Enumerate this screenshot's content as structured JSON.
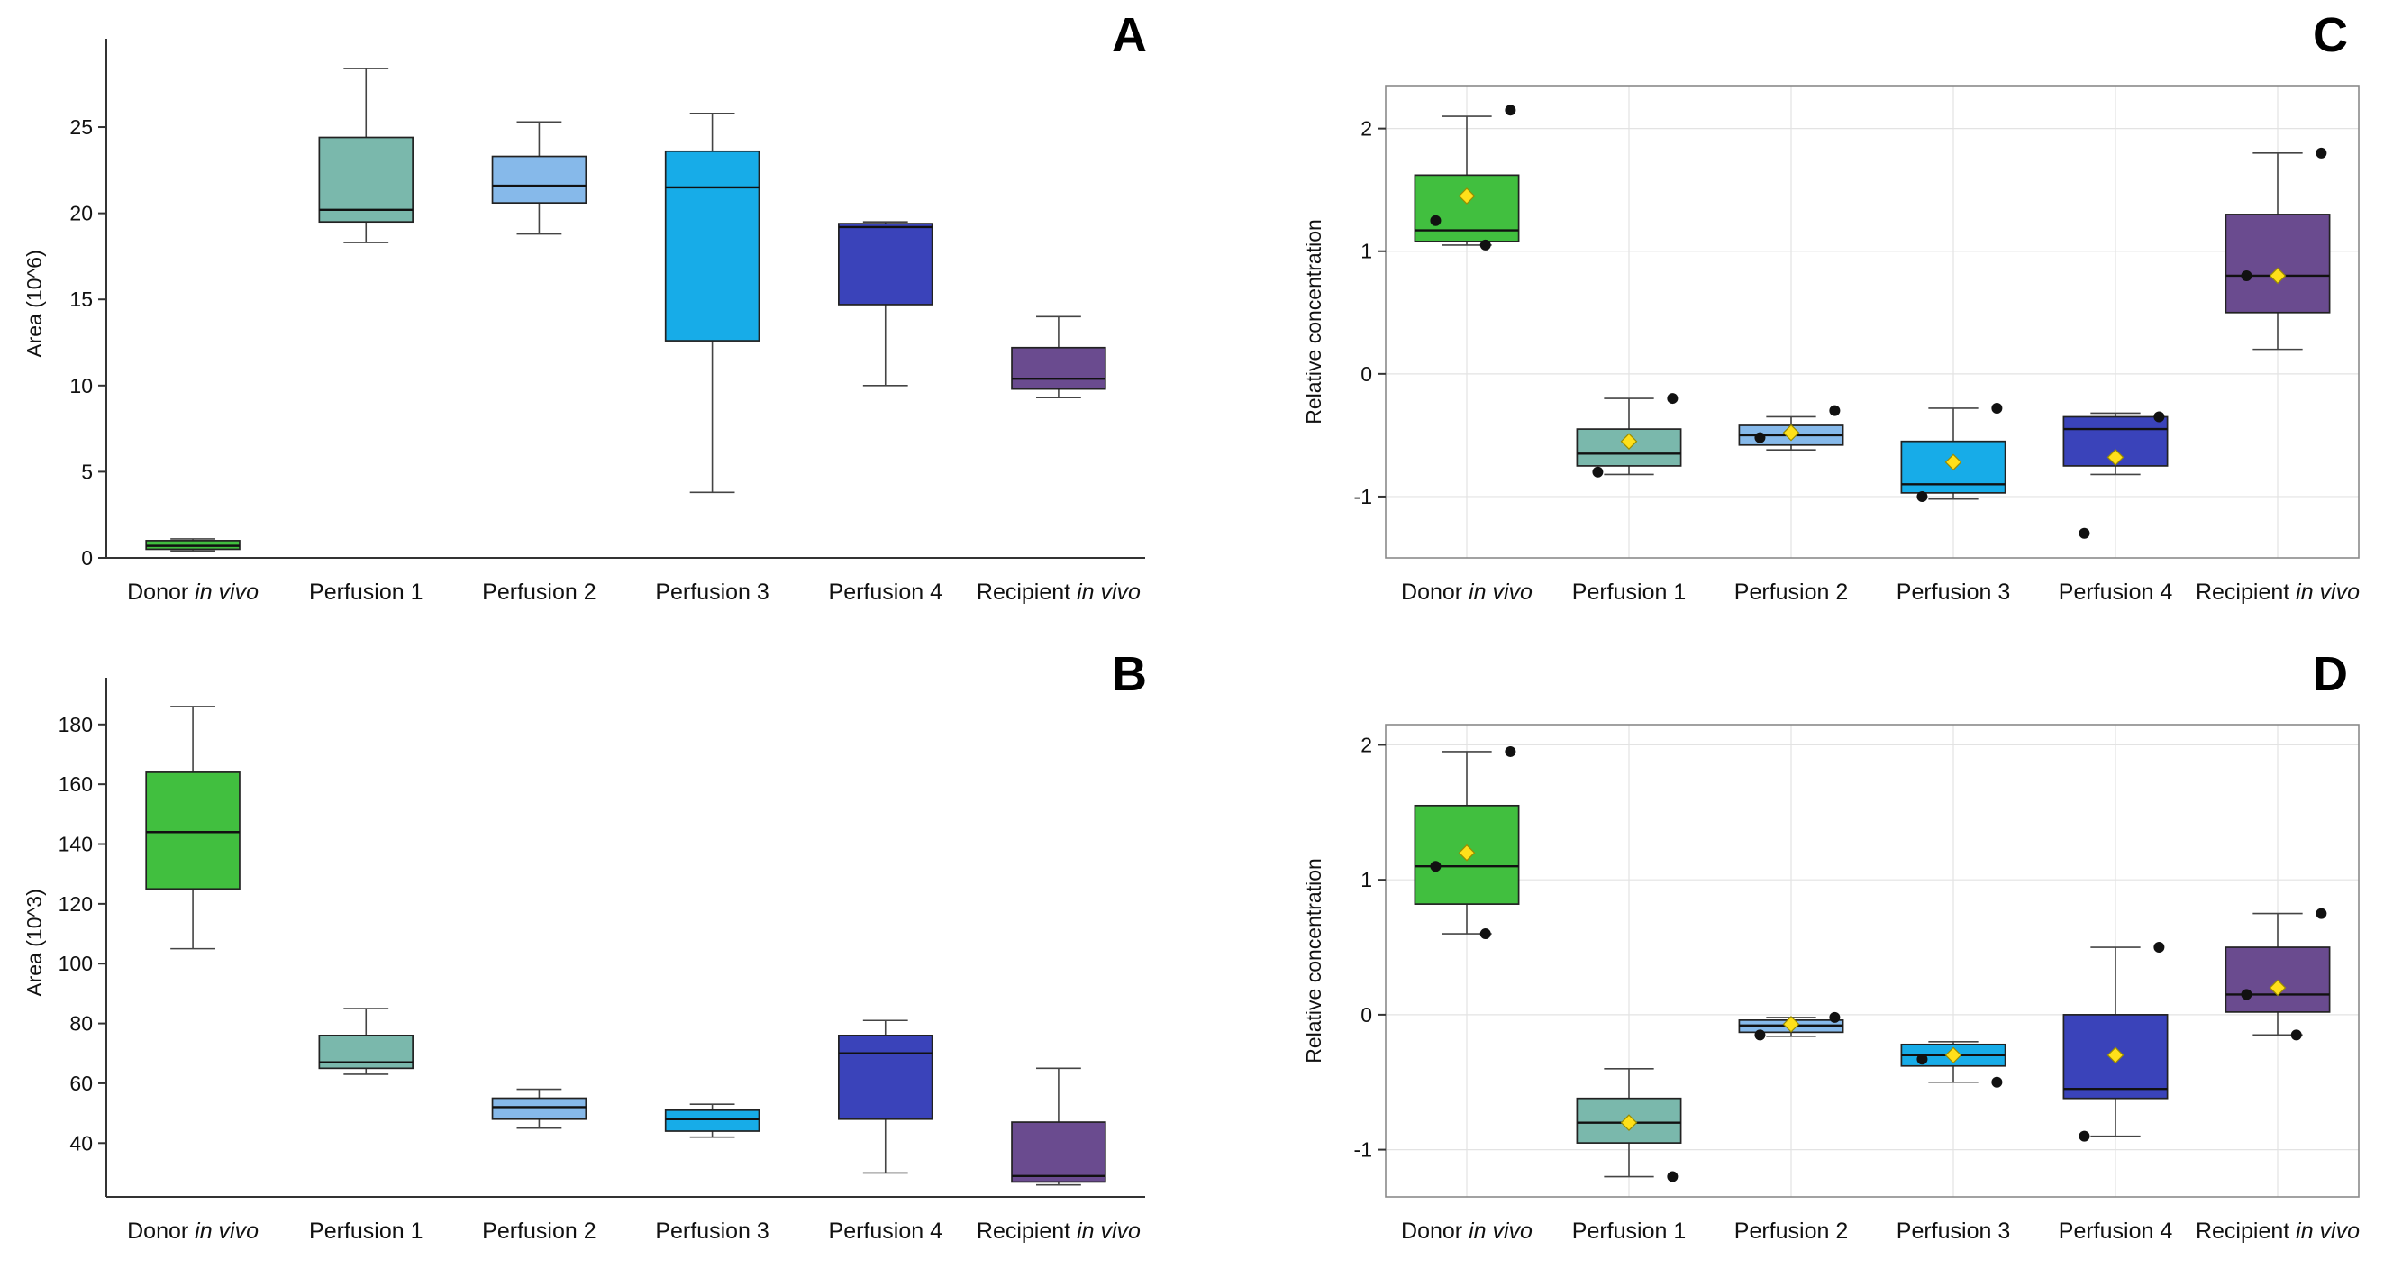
{
  "chart_data": [
    {
      "panel_label": "A",
      "type": "box",
      "title": "",
      "xlabel": "",
      "ylabel": "Area (10^6)",
      "ylim": [
        0,
        29.5
      ],
      "yticks": [
        0,
        5,
        10,
        15,
        20,
        25
      ],
      "grid": false,
      "frame": false,
      "legend": "none",
      "categories": [
        {
          "pre": "Donor ",
          "italic": "in vivo"
        },
        {
          "pre": "Perfusion 1",
          "italic": ""
        },
        {
          "pre": "Perfusion 2",
          "italic": ""
        },
        {
          "pre": "Perfusion 3",
          "italic": ""
        },
        {
          "pre": "Perfusion 4",
          "italic": ""
        },
        {
          "pre": "Recipient ",
          "italic": "in vivo"
        }
      ],
      "boxes": [
        {
          "low": 0.4,
          "q1": 0.5,
          "median": 0.7,
          "q3": 1.0,
          "high": 1.1,
          "color": "#41bf3f"
        },
        {
          "low": 18.3,
          "q1": 19.5,
          "median": 20.2,
          "q3": 24.4,
          "high": 28.4,
          "color": "#7ab8ac"
        },
        {
          "low": 18.8,
          "q1": 20.6,
          "median": 21.6,
          "q3": 23.3,
          "high": 25.3,
          "color": "#86b9ea"
        },
        {
          "low": 3.8,
          "q1": 12.6,
          "median": 21.5,
          "q3": 23.6,
          "high": 25.8,
          "color": "#17ace8"
        },
        {
          "low": 10.0,
          "q1": 14.7,
          "median": 19.2,
          "q3": 19.4,
          "high": 19.5,
          "color": "#3a43ba"
        },
        {
          "low": 9.3,
          "q1": 9.8,
          "median": 10.4,
          "q3": 12.2,
          "high": 14.0,
          "color": "#6a4b8f"
        }
      ]
    },
    {
      "panel_label": "B",
      "type": "box",
      "title": "",
      "xlabel": "",
      "ylabel": "Area (10^3)",
      "ylim": [
        22,
        192
      ],
      "yticks": [
        40,
        60,
        80,
        100,
        120,
        140,
        160,
        180
      ],
      "grid": false,
      "frame": false,
      "legend": "none",
      "categories": [
        {
          "pre": "Donor ",
          "italic": "in vivo"
        },
        {
          "pre": "Perfusion 1",
          "italic": ""
        },
        {
          "pre": "Perfusion 2",
          "italic": ""
        },
        {
          "pre": "Perfusion 3",
          "italic": ""
        },
        {
          "pre": "Perfusion 4",
          "italic": ""
        },
        {
          "pre": "Recipient ",
          "italic": "in vivo"
        }
      ],
      "boxes": [
        {
          "low": 105,
          "q1": 125,
          "median": 144,
          "q3": 164,
          "high": 186,
          "color": "#41bf3f"
        },
        {
          "low": 63,
          "q1": 65,
          "median": 67,
          "q3": 76,
          "high": 85,
          "color": "#7ab8ac"
        },
        {
          "low": 45,
          "q1": 48,
          "median": 52,
          "q3": 55,
          "high": 58,
          "color": "#86b9ea"
        },
        {
          "low": 42,
          "q1": 44,
          "median": 48,
          "q3": 51,
          "high": 53,
          "color": "#17ace8"
        },
        {
          "low": 30,
          "q1": 48,
          "median": 70,
          "q3": 76,
          "high": 81,
          "color": "#3a43ba"
        },
        {
          "low": 26,
          "q1": 27,
          "median": 29,
          "q3": 47,
          "high": 65,
          "color": "#6a4b8f"
        }
      ]
    },
    {
      "panel_label": "C",
      "type": "box",
      "title": "",
      "xlabel": "",
      "ylabel": "Relative concentration",
      "ylim": [
        -1.5,
        2.35
      ],
      "yticks": [
        -1,
        0,
        1,
        2
      ],
      "grid": true,
      "frame": true,
      "legend": "none",
      "categories": [
        {
          "pre": "Donor ",
          "italic": "in vivo"
        },
        {
          "pre": "Perfusion 1",
          "italic": ""
        },
        {
          "pre": "Perfusion 2",
          "italic": ""
        },
        {
          "pre": "Perfusion 3",
          "italic": ""
        },
        {
          "pre": "Perfusion 4",
          "italic": ""
        },
        {
          "pre": "Recipient ",
          "italic": "in vivo"
        }
      ],
      "boxes": [
        {
          "low": 1.05,
          "q1": 1.08,
          "median": 1.17,
          "q3": 1.62,
          "high": 2.1,
          "color": "#41bf3f",
          "mean": 1.45,
          "points": [
            2.15,
            1.25,
            1.05
          ]
        },
        {
          "low": -0.82,
          "q1": -0.75,
          "median": -0.65,
          "q3": -0.45,
          "high": -0.2,
          "color": "#7ab8ac",
          "mean": -0.55,
          "points": [
            -0.2,
            -0.8
          ]
        },
        {
          "low": -0.62,
          "q1": -0.58,
          "median": -0.5,
          "q3": -0.42,
          "high": -0.35,
          "color": "#86b9ea",
          "mean": -0.48,
          "points": [
            -0.3,
            -0.52
          ]
        },
        {
          "low": -1.02,
          "q1": -0.97,
          "median": -0.9,
          "q3": -0.55,
          "high": -0.28,
          "color": "#17ace8",
          "mean": -0.72,
          "points": [
            -0.28,
            -1.0
          ]
        },
        {
          "low": -0.82,
          "q1": -0.75,
          "median": -0.45,
          "q3": -0.35,
          "high": -0.32,
          "color": "#3a43ba",
          "mean": -0.68,
          "points": [
            -0.35,
            -1.3
          ]
        },
        {
          "low": 0.2,
          "q1": 0.5,
          "median": 0.8,
          "q3": 1.3,
          "high": 1.8,
          "color": "#6a4b8f",
          "mean": 0.8,
          "points": [
            1.8,
            0.8
          ]
        }
      ]
    },
    {
      "panel_label": "D",
      "type": "box",
      "title": "",
      "xlabel": "",
      "ylabel": "Relative concentration",
      "ylim": [
        -1.35,
        2.15
      ],
      "yticks": [
        -1,
        0,
        1,
        2
      ],
      "grid": true,
      "frame": true,
      "legend": "none",
      "categories": [
        {
          "pre": "Donor ",
          "italic": "in vivo"
        },
        {
          "pre": "Perfusion 1",
          "italic": ""
        },
        {
          "pre": "Perfusion 2",
          "italic": ""
        },
        {
          "pre": "Perfusion 3",
          "italic": ""
        },
        {
          "pre": "Perfusion 4",
          "italic": ""
        },
        {
          "pre": "Recipient ",
          "italic": "in vivo"
        }
      ],
      "boxes": [
        {
          "low": 0.6,
          "q1": 0.82,
          "median": 1.1,
          "q3": 1.55,
          "high": 1.95,
          "color": "#41bf3f",
          "mean": 1.2,
          "points": [
            1.95,
            1.1,
            0.6
          ]
        },
        {
          "low": -1.2,
          "q1": -0.95,
          "median": -0.8,
          "q3": -0.62,
          "high": -0.4,
          "color": "#7ab8ac",
          "mean": -0.8,
          "points": [
            -1.2
          ]
        },
        {
          "low": -0.16,
          "q1": -0.13,
          "median": -0.08,
          "q3": -0.04,
          "high": -0.02,
          "color": "#86b9ea",
          "mean": -0.07,
          "points": [
            -0.02,
            -0.15
          ]
        },
        {
          "low": -0.5,
          "q1": -0.38,
          "median": -0.3,
          "q3": -0.22,
          "high": -0.2,
          "color": "#17ace8",
          "mean": -0.3,
          "points": [
            -0.5,
            -0.33
          ]
        },
        {
          "low": -0.9,
          "q1": -0.62,
          "median": -0.55,
          "q3": 0.0,
          "high": 0.5,
          "color": "#3a43ba",
          "mean": -0.3,
          "points": [
            0.5,
            -0.9
          ]
        },
        {
          "low": -0.15,
          "q1": 0.02,
          "median": 0.15,
          "q3": 0.5,
          "high": 0.75,
          "color": "#6a4b8f",
          "mean": 0.2,
          "points": [
            0.75,
            0.15,
            -0.15
          ]
        }
      ]
    }
  ],
  "style": {
    "mean_marker_color": "#ffe01a",
    "mean_marker_stroke": "#9a8c00",
    "point_color": "#111111",
    "grid_color": "#e3e3e3",
    "frame_color": "#8a8a8a",
    "axis_color": "#333333"
  }
}
